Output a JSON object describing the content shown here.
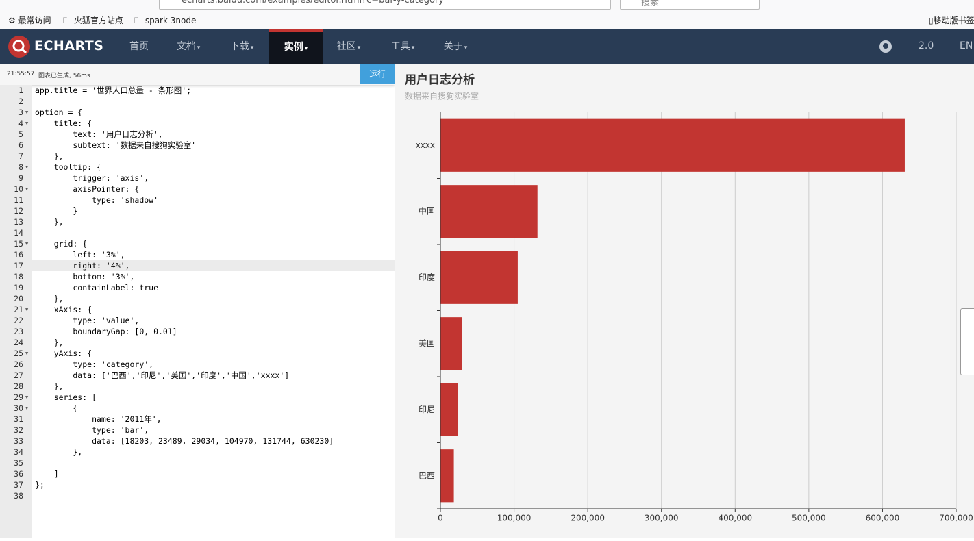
{
  "browser": {
    "url": "echarts.baidu.com/examples/editor.html?c=bar-y-category",
    "search": "搜索",
    "bookmarks": [
      "最常访问",
      "火狐官方站点",
      "spark 3node"
    ],
    "mobile_bookmarks": "移动版书签"
  },
  "navbar": {
    "logo": "ECHARTS",
    "items": [
      "首页",
      "文档",
      "下载",
      "实例",
      "社区",
      "工具",
      "关于"
    ],
    "dropdown": [
      false,
      true,
      true,
      true,
      true,
      true,
      true
    ],
    "active": 3,
    "version": "2.0",
    "language": "EN"
  },
  "editor": {
    "status": {
      "time": "21:55:57",
      "message": "图表已生成, 56ms"
    },
    "run_button": "运行",
    "highlight_line": 17,
    "lines": [
      {
        "number": 1,
        "text": "app.title = '世界人口总量 - 条形图';"
      },
      {
        "number": 2
      },
      {
        "number": 3,
        "text": "option = {",
        "fold": true
      },
      {
        "number": 4,
        "text": "    title: {",
        "fold": true
      },
      {
        "number": 5,
        "text": "        text: '用户日志分析',"
      },
      {
        "number": 6,
        "text": "        subtext: '数据来自搜狗实验室'"
      },
      {
        "number": 7,
        "text": "    },"
      },
      {
        "number": 8,
        "text": "    tooltip: {",
        "fold": true
      },
      {
        "number": 9,
        "text": "        trigger: 'axis',"
      },
      {
        "number": 10,
        "text": "        axisPointer: {",
        "fold": true
      },
      {
        "number": 11,
        "text": "            type: 'shadow'"
      },
      {
        "number": 12,
        "text": "        }"
      },
      {
        "number": 13,
        "text": "    },"
      },
      {
        "number": 14
      },
      {
        "number": 15,
        "text": "    grid: {",
        "fold": true
      },
      {
        "number": 16,
        "text": "        left: '3%',"
      },
      {
        "number": 17,
        "text": "        right: '4%',"
      },
      {
        "number": 18,
        "text": "        bottom: '3%',"
      },
      {
        "number": 19,
        "text": "        containLabel: true"
      },
      {
        "number": 20,
        "text": "    },"
      },
      {
        "number": 21,
        "text": "    xAxis: {",
        "fold": true
      },
      {
        "number": 22,
        "text": "        type: 'value',"
      },
      {
        "number": 23,
        "text": "        boundaryGap: [0, 0.01]"
      },
      {
        "number": 24,
        "text": "    },"
      },
      {
        "number": 25,
        "text": "    yAxis: {",
        "fold": true
      },
      {
        "number": 26,
        "text": "        type: 'category',"
      },
      {
        "number": 27,
        "text": "        data: ['巴西','印尼','美国','印度','中国','xxxx']"
      },
      {
        "number": 28,
        "text": "    },"
      },
      {
        "number": 29,
        "text": "    series: [",
        "fold": true
      },
      {
        "number": 30,
        "text": "        {",
        "fold": true
      },
      {
        "number": 31,
        "text": "            name: '2011年',"
      },
      {
        "number": 32,
        "text": "            type: 'bar',"
      },
      {
        "number": 33,
        "text": "            data: [18203, 23489, 29034, 104970, 131744, 630230]"
      },
      {
        "number": 34,
        "text": "        },"
      },
      {
        "number": 35
      },
      {
        "number": 36,
        "text": "    ]"
      },
      {
        "number": 37,
        "text": "};"
      },
      {
        "number": 38
      }
    ]
  },
  "chart_data": {
    "type": "bar",
    "orientation": "horizontal",
    "title": "用户日志分析",
    "subtitle": "数据来自搜狗实验室",
    "categories": [
      "巴西",
      "印尼",
      "美国",
      "印度",
      "中国",
      "xxxx"
    ],
    "values": [
      18203,
      23489,
      29034,
      104970,
      131744,
      630230
    ],
    "color": "#c23531",
    "xlim": [
      0,
      700000
    ],
    "xticks": [
      0,
      {
        "value": 100000,
        "label": "100,000"
      },
      {
        "value": 200000,
        "label": "200,000"
      },
      {
        "value": 300000,
        "label": "300,000"
      },
      {
        "value": 400000,
        "label": "400,000"
      },
      {
        "value": 500000,
        "label": "500,000"
      },
      {
        "value": 600000,
        "label": "600,000"
      },
      {
        "value": 700000,
        "label": "700,000"
      }
    ],
    "grid": true
  }
}
